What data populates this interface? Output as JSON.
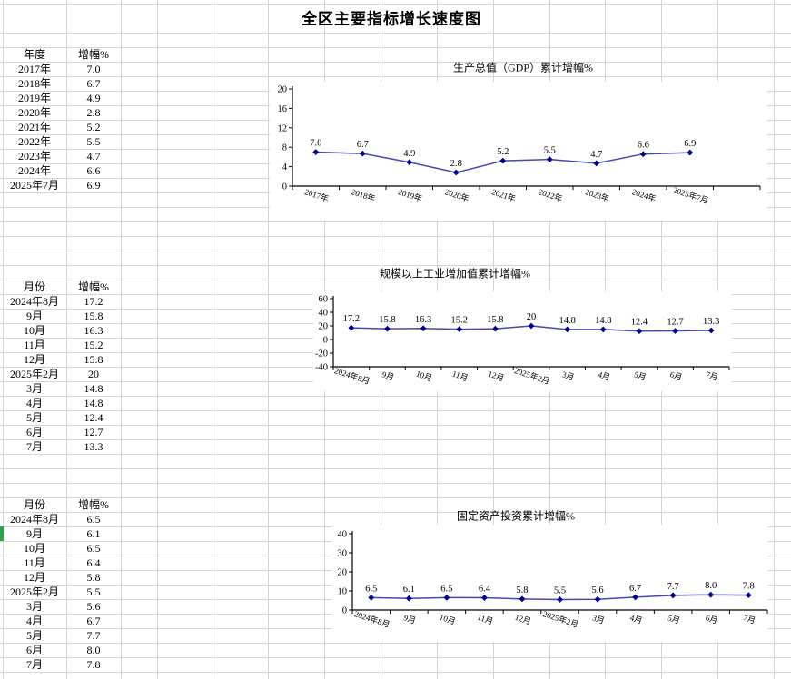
{
  "sheet_title": "全区主要指标增长速度图",
  "colors": {
    "series_line": "#4747AD",
    "marker": "#00008B",
    "grid_line": "#D4D4D4",
    "axis": "#000000",
    "selection_green": "#2E9E50",
    "text": "#000000"
  },
  "tables": [
    {
      "name": "gdp-table",
      "headers": [
        "年度",
        "增幅%"
      ],
      "rows": [
        [
          "2017年",
          "7.0"
        ],
        [
          "2018年",
          "6.7"
        ],
        [
          "2019年",
          "4.9"
        ],
        [
          "2020年",
          "2.8"
        ],
        [
          "2021年",
          "5.2"
        ],
        [
          "2022年",
          "5.5"
        ],
        [
          "2023年",
          "4.7"
        ],
        [
          "2024年",
          "6.6"
        ],
        [
          "2025年7月",
          "6.9"
        ]
      ]
    },
    {
      "name": "industry-table",
      "headers": [
        "月份",
        "增幅%"
      ],
      "rows": [
        [
          "2024年8月",
          "17.2"
        ],
        [
          "9月",
          "15.8"
        ],
        [
          "10月",
          "16.3"
        ],
        [
          "11月",
          "15.2"
        ],
        [
          "12月",
          "15.8"
        ],
        [
          "2025年2月",
          "20"
        ],
        [
          "3月",
          "14.8"
        ],
        [
          "4月",
          "14.8"
        ],
        [
          "5月",
          "12.4"
        ],
        [
          "6月",
          "12.7"
        ],
        [
          "7月",
          "13.3"
        ]
      ]
    },
    {
      "name": "investment-table",
      "headers": [
        "月份",
        "增幅%"
      ],
      "rows": [
        [
          "2024年8月",
          "6.5"
        ],
        [
          "9月",
          "6.1"
        ],
        [
          "10月",
          "6.5"
        ],
        [
          "11月",
          "6.4"
        ],
        [
          "12月",
          "5.8"
        ],
        [
          "2025年2月",
          "5.5"
        ],
        [
          "3月",
          "5.6"
        ],
        [
          "4月",
          "6.7"
        ],
        [
          "5月",
          "7.7"
        ],
        [
          "6月",
          "8.0"
        ],
        [
          "7月",
          "7.8"
        ]
      ]
    }
  ],
  "chart_data": [
    {
      "type": "line",
      "title": "生产总值（GDP）累计增幅%",
      "categories": [
        "2017年",
        "2018年",
        "2019年",
        "2020年",
        "2021年",
        "2022年",
        "2023年",
        "2024年",
        "2025年7月"
      ],
      "values": [
        7.0,
        6.7,
        4.9,
        2.8,
        5.2,
        5.5,
        4.7,
        6.6,
        6.9
      ],
      "value_labels": [
        "7.0",
        "6.7",
        "4.9",
        "2.8",
        "5.2",
        "5.5",
        "4.7",
        "6.6",
        "6.9"
      ],
      "xlabel": "",
      "ylabel": "",
      "ylim": [
        0,
        20
      ],
      "yticks": [
        20,
        16,
        12,
        8,
        4,
        0
      ],
      "grid": false,
      "legend": "none",
      "marker": "diamond"
    },
    {
      "type": "line",
      "title": "规模以上工业增加值累计增幅%",
      "categories": [
        "2024年8月",
        "9月",
        "10月",
        "11月",
        "12月",
        "2025年2月",
        "3月",
        "4月",
        "5月",
        "6月",
        "7月"
      ],
      "values": [
        17.2,
        15.8,
        16.3,
        15.2,
        15.8,
        20,
        14.8,
        14.8,
        12.4,
        12.7,
        13.3
      ],
      "value_labels": [
        "17.2",
        "15.8",
        "16.3",
        "15.2",
        "15.8",
        "20",
        "14.8",
        "14.8",
        "12.4",
        "12.7",
        "13.3"
      ],
      "xlabel": "",
      "ylabel": "",
      "ylim": [
        -40,
        60
      ],
      "yticks": [
        60,
        40,
        20,
        0,
        -20,
        -40
      ],
      "grid": false,
      "legend": "none",
      "marker": "diamond"
    },
    {
      "type": "line",
      "title": "固定资产投资累计增幅%",
      "categories": [
        "2024年8月",
        "9月",
        "10月",
        "11月",
        "12月",
        "2025年2月",
        "3月",
        "4月",
        "5月",
        "6月",
        "7月"
      ],
      "values": [
        6.5,
        6.1,
        6.5,
        6.4,
        5.8,
        5.5,
        5.6,
        6.7,
        7.7,
        8.0,
        7.8
      ],
      "value_labels": [
        "6.5",
        "6.1",
        "6.5",
        "6.4",
        "5.8",
        "5.5",
        "5.6",
        "6.7",
        "7.7",
        "8.0",
        "7.8"
      ],
      "xlabel": "",
      "ylabel": "",
      "ylim": [
        0,
        40
      ],
      "yticks": [
        40,
        30,
        20,
        10,
        0
      ],
      "grid": false,
      "legend": "none",
      "marker": "diamond"
    }
  ]
}
